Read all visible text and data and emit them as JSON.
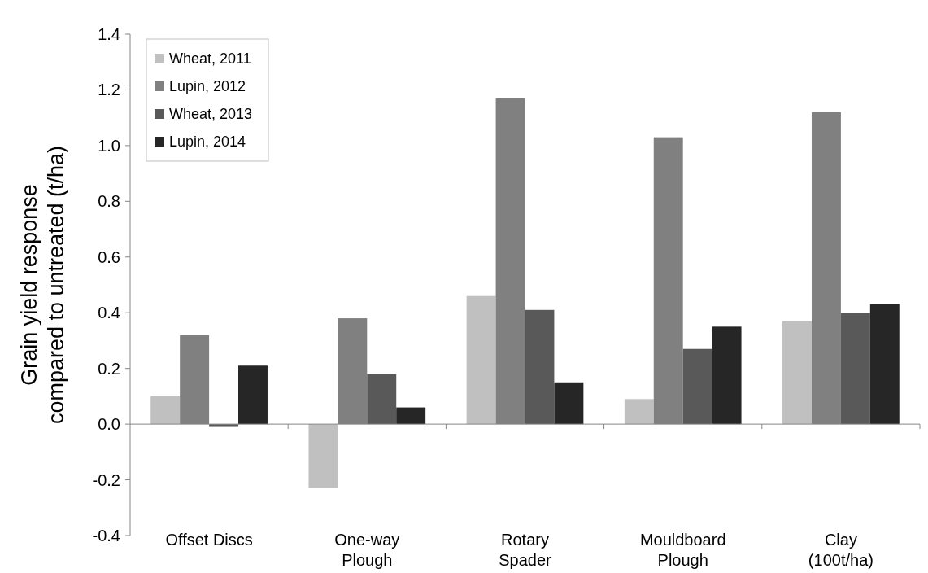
{
  "chart_data": {
    "type": "bar",
    "ylabel": "Grain yield response compared to untreated (t/ha)",
    "categories": [
      "Offset Discs",
      "One-way Plough",
      "Rotary Spader",
      "Mouldboard Plough",
      "Clay (100t/ha)"
    ],
    "series": [
      {
        "name": "Wheat, 2011",
        "color": "#c0c0c0",
        "values": [
          0.1,
          -0.23,
          0.46,
          0.09,
          0.37
        ]
      },
      {
        "name": "Lupin, 2012",
        "color": "#808080",
        "values": [
          0.32,
          0.38,
          1.17,
          1.03,
          1.12
        ]
      },
      {
        "name": "Wheat, 2013",
        "color": "#595959",
        "values": [
          -0.01,
          0.18,
          0.41,
          0.27,
          0.4
        ]
      },
      {
        "name": "Lupin, 2014",
        "color": "#262626",
        "values": [
          0.21,
          0.06,
          0.15,
          0.35,
          0.43
        ]
      }
    ],
    "ylim": [
      -0.4,
      1.4
    ],
    "yticks": [
      -0.4,
      -0.2,
      {
        "value": 0,
        "label": "0.0"
      },
      0.2,
      0.4,
      0.6,
      0.8,
      {
        "value": 1,
        "label": "1.0"
      },
      1.2,
      1.4
    ],
    "legend": "top left"
  }
}
